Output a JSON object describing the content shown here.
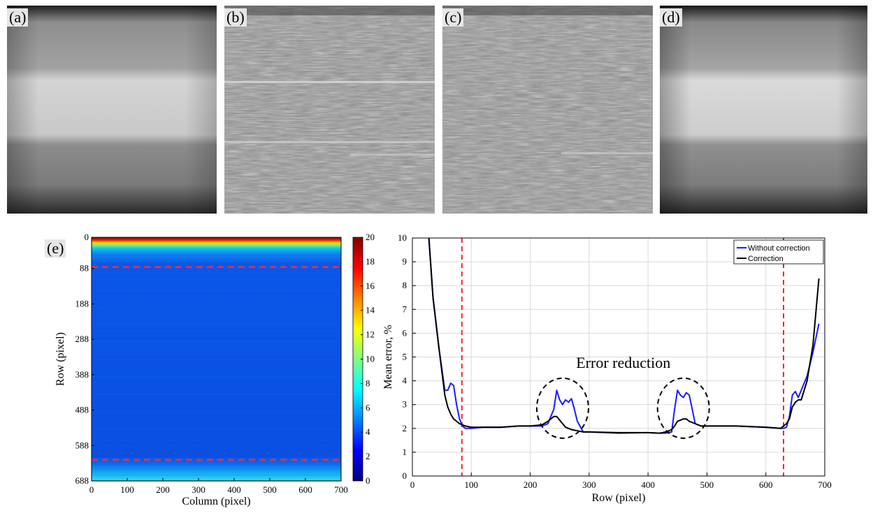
{
  "panels": {
    "a": "(a)",
    "b": "(b)",
    "c": "(c)",
    "d": "(d)",
    "e": "(e)"
  },
  "chart_data": [
    {
      "type": "heatmap",
      "xlabel": "Column (pixel)",
      "ylabel": "Row (pixel)",
      "x_ticks": [
        0,
        100,
        200,
        300,
        400,
        500,
        600,
        700
      ],
      "y_ticks": [
        0,
        88,
        188,
        288,
        388,
        488,
        588,
        688
      ],
      "xlim": [
        0,
        700
      ],
      "ylim": [
        0,
        688
      ],
      "colorbar_ticks": [
        0,
        2,
        4,
        6,
        8,
        10,
        12,
        14,
        16,
        18,
        20
      ],
      "colorbar_range": [
        0,
        20
      ],
      "dashed_lines_row": [
        84,
        628
      ],
      "colors": {
        "low": "#0a3bd9",
        "high": "#7a0000",
        "dashed": "#ff2a2a"
      }
    },
    {
      "type": "line",
      "xlabel": "Row (pixel)",
      "ylabel": "Mean error, %",
      "xlim": [
        0,
        700
      ],
      "ylim": [
        0,
        10
      ],
      "x_ticks": [
        0,
        100,
        200,
        300,
        400,
        500,
        600,
        700
      ],
      "y_ticks": [
        0,
        1,
        2,
        3,
        4,
        5,
        6,
        7,
        8,
        9,
        10
      ],
      "grid": true,
      "legend_position": "top-right",
      "annotation": "Error reduction",
      "dashed_lines_x": [
        84,
        630
      ],
      "ellipses_center_x": [
        255,
        460
      ],
      "series": [
        {
          "name": "Without correction",
          "color": "#1a1aff",
          "x": [
            28,
            35,
            45,
            55,
            60,
            65,
            70,
            75,
            80,
            85,
            90,
            100,
            120,
            150,
            180,
            200,
            220,
            230,
            240,
            245,
            250,
            255,
            260,
            265,
            270,
            275,
            280,
            290,
            300,
            350,
            400,
            420,
            430,
            440,
            445,
            450,
            455,
            460,
            465,
            470,
            475,
            480,
            490,
            500,
            550,
            600,
            625,
            630,
            635,
            640,
            645,
            650,
            655,
            660,
            670,
            680,
            690
          ],
          "values": [
            10,
            7.5,
            5.4,
            3.6,
            3.6,
            3.9,
            3.8,
            3.0,
            2.4,
            2.1,
            2.0,
            2.0,
            2.05,
            2.05,
            2.1,
            2.1,
            2.1,
            2.2,
            2.8,
            3.6,
            3.2,
            3.0,
            3.2,
            3.1,
            3.25,
            2.8,
            2.3,
            1.85,
            1.85,
            1.8,
            1.82,
            1.8,
            1.8,
            1.85,
            2.8,
            3.6,
            3.4,
            3.3,
            3.5,
            3.4,
            2.8,
            2.2,
            2.1,
            2.1,
            2.1,
            2.05,
            2.0,
            2.0,
            2.05,
            2.5,
            3.4,
            3.55,
            3.3,
            3.6,
            4.2,
            5.2,
            6.4
          ]
        },
        {
          "name": "Correction",
          "color": "#000000",
          "x": [
            28,
            35,
            45,
            55,
            60,
            65,
            70,
            75,
            80,
            85,
            90,
            100,
            120,
            150,
            180,
            200,
            220,
            230,
            240,
            245,
            250,
            255,
            260,
            265,
            270,
            280,
            290,
            300,
            350,
            400,
            420,
            430,
            440,
            445,
            450,
            455,
            460,
            465,
            470,
            480,
            490,
            500,
            550,
            600,
            625,
            630,
            635,
            640,
            645,
            650,
            655,
            660,
            670,
            680,
            690
          ],
          "values": [
            10,
            7.5,
            5.4,
            3.4,
            2.9,
            2.6,
            2.4,
            2.3,
            2.2,
            2.15,
            2.1,
            2.05,
            2.05,
            2.05,
            2.1,
            2.1,
            2.15,
            2.3,
            2.5,
            2.5,
            2.35,
            2.2,
            2.05,
            2.0,
            1.95,
            1.9,
            1.85,
            1.85,
            1.82,
            1.82,
            1.8,
            1.85,
            1.95,
            2.1,
            2.3,
            2.35,
            2.4,
            2.4,
            2.3,
            2.2,
            2.1,
            2.1,
            2.1,
            2.05,
            2.0,
            2.1,
            2.2,
            2.4,
            2.9,
            3.1,
            3.2,
            3.2,
            4.0,
            5.5,
            8.3
          ]
        }
      ]
    }
  ]
}
